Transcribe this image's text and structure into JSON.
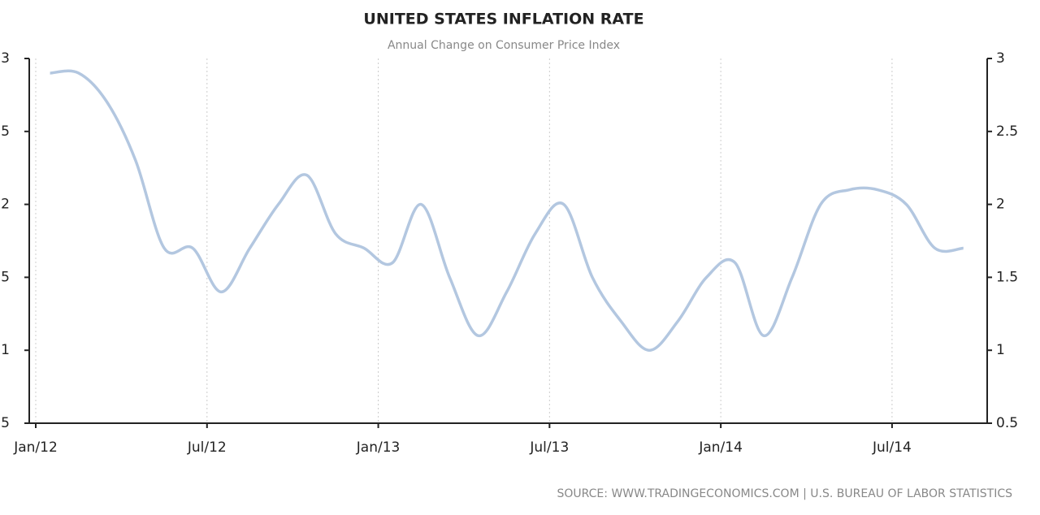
{
  "chart_data": {
    "type": "line",
    "title": "UNITED STATES INFLATION RATE",
    "subtitle": "Annual Change on Consumer Price Index",
    "source": "SOURCE: WWW.TRADINGECONOMICS.COM | U.S. BUREAU OF LABOR STATISTICS",
    "categories": [
      "Jan/12",
      null,
      null,
      null,
      null,
      null,
      "Jul/12",
      null,
      null,
      null,
      null,
      null,
      "Jan/13",
      null,
      null,
      null,
      null,
      null,
      "Jul/13",
      null,
      null,
      null,
      null,
      null,
      "Jan/14",
      null,
      null,
      null,
      null,
      null,
      "Jul/14",
      null,
      null
    ],
    "series": [
      {
        "color": "#b3c7e0",
        "values": [
          2.9,
          2.9,
          2.7,
          2.3,
          1.7,
          1.7,
          1.4,
          1.7,
          2.0,
          2.2,
          1.8,
          1.7,
          1.6,
          2.0,
          1.5,
          1.1,
          1.4,
          1.8,
          2.0,
          1.5,
          1.2,
          1.0,
          1.2,
          1.5,
          1.6,
          1.1,
          1.5,
          2.0,
          2.1,
          2.1,
          2.0,
          1.7,
          1.7
        ]
      }
    ],
    "ylim": [
      0.5,
      3
    ],
    "yticks": [
      0.5,
      1,
      1.5,
      2,
      2.5,
      3
    ],
    "grid": true
  }
}
